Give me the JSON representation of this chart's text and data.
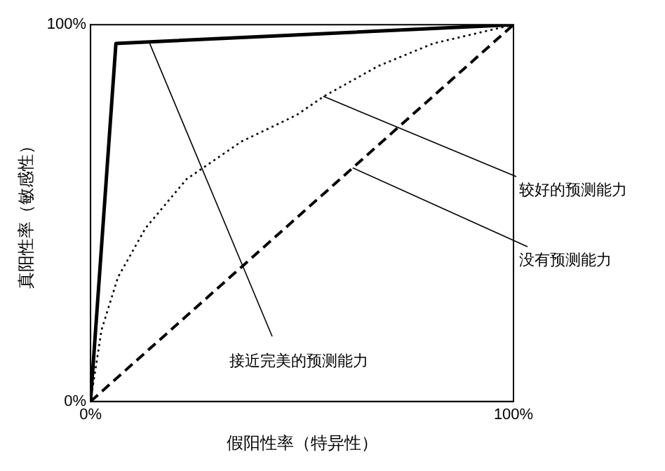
{
  "chart_data": {
    "type": "line",
    "xlabel": "假阳性率（特异性）",
    "ylabel": "真阳性率（敏感性）",
    "xlim": [
      0,
      100
    ],
    "ylim": [
      0,
      100
    ],
    "xticks": [
      {
        "value": 0,
        "label": "0%"
      },
      {
        "value": 100,
        "label": "100%"
      }
    ],
    "yticks": [
      {
        "value": 0,
        "label": "0%"
      },
      {
        "value": 100,
        "label": "100%"
      }
    ],
    "grid": false,
    "legend": false,
    "marker": "none",
    "series": [
      {
        "color": "#000000",
        "line_style": "solid",
        "x": [
          0,
          6,
          100
        ],
        "values": [
          0,
          95,
          100
        ]
      },
      {
        "color": "#000000",
        "line_style": "dotted",
        "x": [
          0,
          2.6,
          6.5,
          13,
          22.7,
          35.7,
          48.7,
          55.2,
          68,
          81,
          100
        ],
        "values": [
          0,
          19,
          33,
          46,
          59,
          69,
          76,
          81,
          89,
          95,
          100
        ]
      },
      {
        "color": "#000000",
        "line_style": "dashed",
        "x": [
          0,
          100
        ],
        "values": [
          0,
          100
        ]
      }
    ],
    "annotations": [
      {
        "text": "接近完美的预测能力",
        "x": 14,
        "y": 95
      },
      {
        "text": "较好的预测能力",
        "x": 55,
        "y": 81
      },
      {
        "text": "没有预测能力",
        "x": 62,
        "y": 62
      }
    ]
  }
}
